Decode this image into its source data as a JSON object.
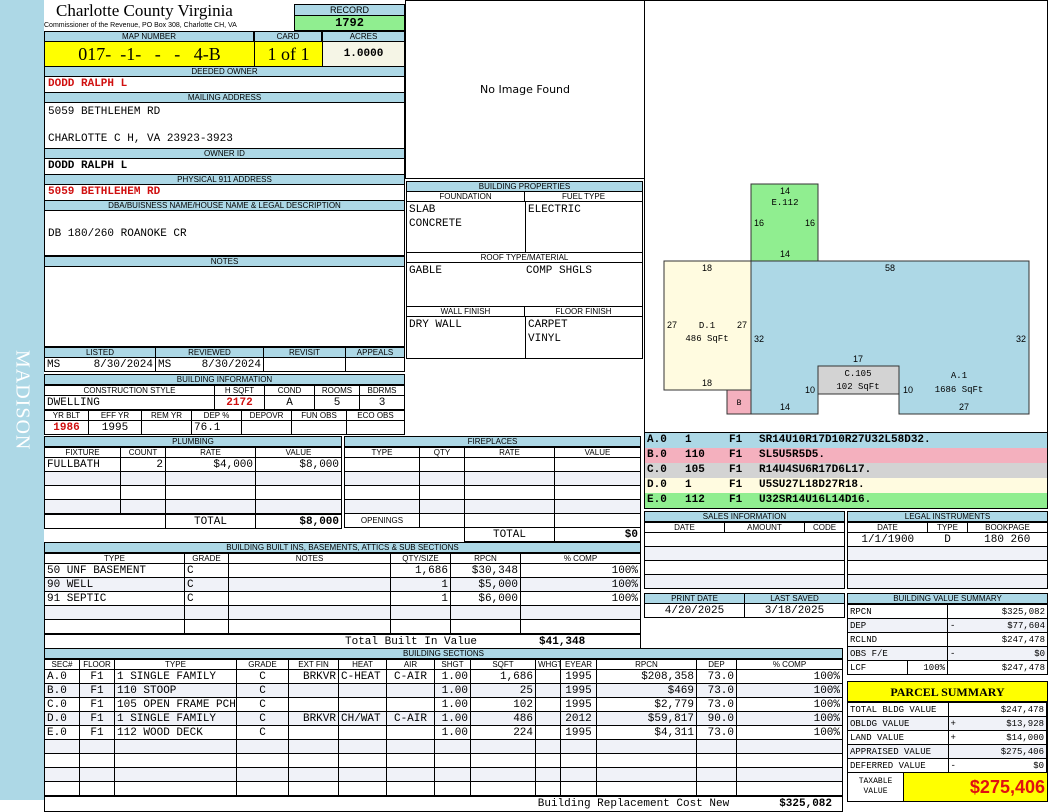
{
  "county_strip": "MADISON",
  "header": {
    "title": "Charlotte County Virginia",
    "subtitle": "Commissioner of the Revenue, PO Box 308, Charlotte CH, VA",
    "record_label": "RECORD",
    "record": "1792"
  },
  "map": {
    "map_label": "MAP NUMBER",
    "map_number": "017-  -1-   -   -   4-B",
    "card_label": "CARD",
    "card": "1 of 1",
    "acres_label": "ACRES",
    "acres": "1.0000"
  },
  "owner": {
    "deeded_label": "DEEDED OWNER",
    "deeded": "DODD RALPH L",
    "mailing_label": "MAILING ADDRESS",
    "mail1": "5059 BETHLEHEM RD",
    "mail2": "CHARLOTTE C H, VA 23923-3923",
    "ownerid_label": "OWNER ID",
    "ownerid": "DODD RALPH L",
    "phys_label": "PHYSICAL 911 ADDRESS",
    "phys": "5059 BETHLEHEM RD",
    "dba_label": "DBA/BUISNESS NAME/HOUSE NAME & LEGAL DESCRIPTION",
    "dba": "DB 180/260  ROANOKE CR",
    "notes_label": "NOTES"
  },
  "image": {
    "text": "No Image Found"
  },
  "props": {
    "title": "BUILDING PROPERTIES",
    "foundation_label": "FOUNDATION",
    "foundation": [
      "SLAB",
      "CONCRETE"
    ],
    "fuel_label": "FUEL TYPE",
    "fuel": "ELECTRIC",
    "roof_label": "ROOF TYPE/MATERIAL",
    "roof1": "GABLE",
    "roof2": "COMP SHGLS",
    "wall_label": "WALL FINISH",
    "wall": "DRY WALL",
    "floor_label": "FLOOR FINISH",
    "floor": [
      "CARPET",
      "VINYL"
    ]
  },
  "listing": {
    "headers": [
      "LISTED",
      "REVIEWED",
      "REVISIT",
      "APPEALS"
    ],
    "listed_by": "MS",
    "listed": "8/30/2024",
    "reviewed_by": "MS",
    "reviewed": "8/30/2024"
  },
  "bldg_info": {
    "title": "BUILDING INFORMATION",
    "h1": [
      "CONSTRUCTION STYLE",
      "H SQFT",
      "COND",
      "ROOMS",
      "BDRMS"
    ],
    "style": "DWELLING",
    "hsqft": "2172",
    "cond": "A",
    "rooms": "5",
    "bdrms": "3",
    "h2": [
      "YR BLT",
      "EFF YR",
      "REM YR",
      "DEP %",
      "DEPOVR",
      "FUN OBS",
      "ECO OBS"
    ],
    "yrblt": "1986",
    "effyr": "1995",
    "dep": "76.1"
  },
  "plumbing": {
    "title": "PLUMBING",
    "headers": [
      "FIXTURE",
      "COUNT",
      "RATE",
      "VALUE"
    ],
    "rows": [
      [
        "FULLBATH",
        "2",
        "$4,000",
        "$8,000"
      ]
    ],
    "total_label": "TOTAL",
    "total": "$8,000"
  },
  "fireplaces": {
    "title": "FIREPLACES",
    "headers": [
      "TYPE",
      "QTY",
      "RATE",
      "VALUE"
    ],
    "openings_label": "OPENINGS",
    "total_label": "TOTAL",
    "total": "$0"
  },
  "builtins": {
    "title": "BUILDING BUILT INS, BASEMENTS, ATTICS & SUB SECTIONS",
    "headers": [
      "TYPE",
      "GRADE",
      "NOTES",
      "QTY/SIZE",
      "RPCN",
      "% COMP"
    ],
    "rows": [
      [
        "50 UNF BASEMENT",
        "C",
        "",
        "1,686",
        "$30,348",
        "100%"
      ],
      [
        "90 WELL",
        "C",
        "",
        "1",
        "$5,000",
        "100%"
      ],
      [
        "91 SEPTIC",
        "C",
        "",
        "1",
        "$6,000",
        "100%"
      ]
    ],
    "total_label": "Total Built In Value",
    "total": "$41,348"
  },
  "sections": {
    "title": "BUILDING SECTIONS",
    "headers": [
      "SEC#",
      "FLOOR",
      "TYPE",
      "GRADE",
      "EXT FIN",
      "HEAT",
      "AIR",
      "SHGT",
      "SQFT",
      "WHGT",
      "EYEAR",
      "RPCN",
      "DEP",
      "% COMP"
    ],
    "rows": [
      [
        "A.0",
        "F1",
        "1 SINGLE FAMILY",
        "C",
        "BRKVR",
        "C-HEAT",
        "C-AIR",
        "1.00",
        "1,686",
        "",
        "1995",
        "$208,358",
        "73.0",
        "100%"
      ],
      [
        "B.0",
        "F1",
        "110 STOOP",
        "C",
        "",
        "",
        "",
        "1.00",
        "25",
        "",
        "1995",
        "$469",
        "73.0",
        "100%"
      ],
      [
        "C.0",
        "F1",
        "105 OPEN FRAME PCH",
        "C",
        "",
        "",
        "",
        "1.00",
        "102",
        "",
        "1995",
        "$2,779",
        "73.0",
        "100%"
      ],
      [
        "D.0",
        "F1",
        "1 SINGLE FAMILY",
        "C",
        "BRKVR",
        "CH/WAT",
        "C-AIR",
        "1.00",
        "486",
        "",
        "2012",
        "$59,817",
        "90.0",
        "100%"
      ],
      [
        "E.0",
        "F1",
        "112 WOOD DECK",
        "C",
        "",
        "",
        "",
        "1.00",
        "224",
        "",
        "1995",
        "$4,311",
        "73.0",
        "100%"
      ]
    ],
    "total_label": "Building Replacement Cost New",
    "total": "$325,082"
  },
  "sketch": {
    "labels": {
      "E": "E.112",
      "D": "D.1",
      "D_area": "486 SqFt",
      "C": "C.105",
      "C_area": "102 SqFt",
      "A": "A.1",
      "A_area": "1686 SqFt",
      "B": "B"
    },
    "colors": {
      "A": "#add8e6",
      "B": "#f4b0be",
      "C": "#d3d3d3",
      "D": "#fffbe0",
      "E": "#90ee90"
    },
    "dims": {
      "e_top": "14",
      "e_left": "16",
      "e_right": "16",
      "e_bottom": "14",
      "a_top": "58",
      "a_right": "32",
      "a_left": "32",
      "a_bottom_left": "14",
      "a_bottom_right": "27",
      "a_notch_l": "10",
      "a_notch_r": "10",
      "c_top": "17",
      "d_top": "18",
      "d_bottom": "18",
      "d_left": "27",
      "d_right": "27"
    },
    "legend": [
      [
        "A.0",
        "1",
        "F1",
        "SR14U10R17D10R27U32L58D32.",
        "#add8e6"
      ],
      [
        "B.0",
        "110",
        "F1",
        "SL5U5R5D5.",
        "#f4b0be"
      ],
      [
        "C.0",
        "105",
        "F1",
        "R14U4SU6R17D6L17.",
        "#d3d3d3"
      ],
      [
        "D.0",
        "1",
        "F1",
        "U5SU27L18D27R18.",
        "#fffbe0"
      ],
      [
        "E.0",
        "112",
        "F1",
        "U32SR14U16L14D16.",
        "#90ee90"
      ]
    ]
  },
  "sales": {
    "title": "SALES INFORMATION",
    "headers": [
      "DATE",
      "AMOUNT",
      "CODE"
    ]
  },
  "legal": {
    "title": "LEGAL INSTRUMENTS",
    "headers": [
      "DATE",
      "TYPE",
      "BOOKPAGE"
    ],
    "rows": [
      [
        "1/1/1900",
        "D",
        "180 260"
      ]
    ]
  },
  "dates": {
    "print_label": "PRINT DATE",
    "print": "4/20/2025",
    "saved_label": "LAST SAVED",
    "saved": "3/18/2025"
  },
  "value_summary": {
    "title": "BUILDING VALUE SUMMARY",
    "rows": [
      [
        "RPCN",
        "",
        "",
        "$325,082"
      ],
      [
        "DEP",
        "",
        "-",
        "$77,604"
      ],
      [
        "RCLND",
        "",
        "",
        "$247,478"
      ],
      [
        "OBS F/E",
        "",
        "-",
        "$0"
      ],
      [
        "LCF",
        "100%",
        "",
        "$247,478"
      ]
    ]
  },
  "parcel": {
    "title": "PARCEL SUMMARY",
    "rows": [
      [
        "TOTAL BLDG VALUE",
        "",
        "$247,478"
      ],
      [
        "OBLDG VALUE",
        "+",
        "$13,928"
      ],
      [
        "LAND VALUE",
        "+",
        "$14,000"
      ],
      [
        "APPRAISED VALUE",
        "",
        "$275,406"
      ],
      [
        "DEFERRED VALUE",
        "-",
        "$0"
      ]
    ],
    "taxable_label": "TAXABLE VALUE",
    "taxable": "$275,406"
  }
}
